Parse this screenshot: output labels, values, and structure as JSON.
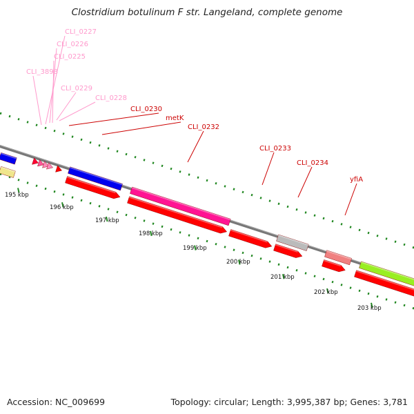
{
  "title": "Clostridium botulinum F str. Langeland, complete genome",
  "footer": {
    "accession": "Accession: NC_009699",
    "meta": "Topology: circular; Length: 3,995,387 bp; Genes: 3,781"
  },
  "ticks": [
    "195 kbp",
    "196 kbp",
    "197 kbp",
    "198 kbp",
    "199 kbp",
    "200 kbp",
    "201 kbp",
    "202 kbp",
    "203 kbp"
  ],
  "genes": [
    {
      "name": "CLI_0227",
      "color": "#ff99cc"
    },
    {
      "name": "CLI_0226",
      "color": "#ff99cc"
    },
    {
      "name": "CLI_0225",
      "color": "#ff99cc"
    },
    {
      "name": "CLI_3898",
      "color": "#ff99cc"
    },
    {
      "name": "CLI_0229",
      "color": "#ff99cc"
    },
    {
      "name": "CLI_0228",
      "color": "#ff99cc"
    },
    {
      "name": "CLI_0230",
      "color": "#cc0000"
    },
    {
      "name": "metK",
      "color": "#cc0000"
    },
    {
      "name": "CLI_0232",
      "color": "#cc0000"
    },
    {
      "name": "CLI_0233",
      "color": "#cc0000"
    },
    {
      "name": "CLI_0234",
      "color": "#cc0000"
    },
    {
      "name": "yfiA",
      "color": "#cc0000"
    }
  ],
  "colors": {
    "cds": "#ff0000",
    "blue": "#0000ee",
    "magenta": "#ff1493",
    "grey": "#bbbbbb",
    "salmon": "#f08080",
    "lime": "#99ee22",
    "yellow": "#f0e68c",
    "backbone": "#777777",
    "tick": "#228822"
  }
}
